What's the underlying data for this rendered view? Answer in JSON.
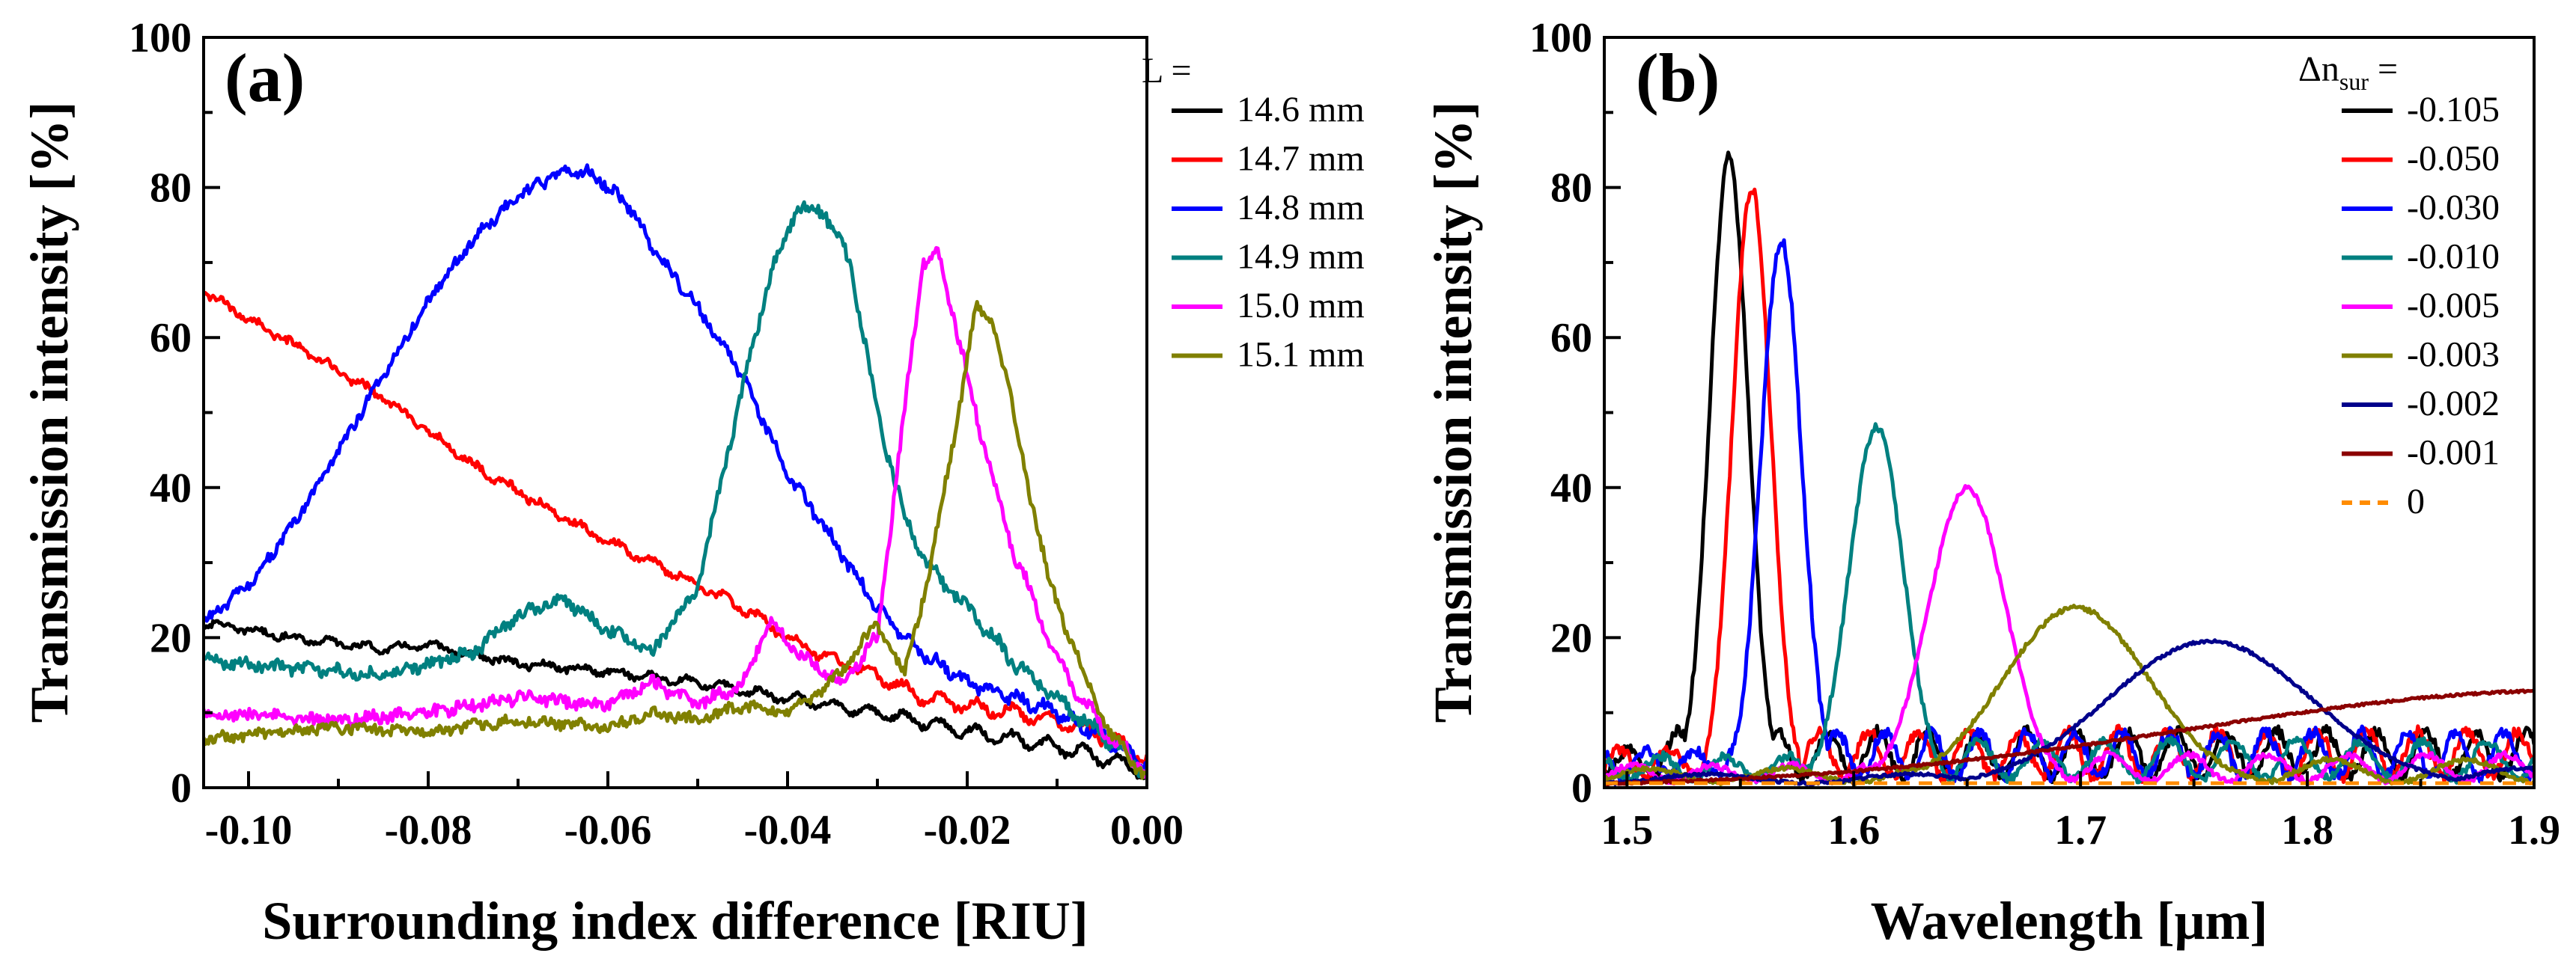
{
  "chart_data": [
    {
      "type": "line",
      "panel_label": "(a)",
      "xlabel": "Surrounding index difference [RIU]",
      "ylabel": "Transmission intensity [%]",
      "xlim": [
        -0.105,
        0.0
      ],
      "ylim": [
        0,
        100
      ],
      "x_ticks": [
        -0.1,
        -0.08,
        -0.06,
        -0.04,
        -0.02,
        0.0
      ],
      "x_tick_labels": [
        "-0.10",
        "-0.08",
        "-0.06",
        "-0.04",
        "-0.02",
        "0.00"
      ],
      "y_ticks": [
        0,
        20,
        40,
        60,
        80,
        100
      ],
      "y_tick_labels": [
        "0",
        "20",
        "40",
        "60",
        "80",
        "100"
      ],
      "legend_title": "L =",
      "legend_position": "top-right",
      "series": [
        {
          "name": "14.6 mm",
          "color": "#000000",
          "noise": 0.4,
          "ripple": 1.0,
          "ripple_period": 0.004,
          "x": [
            -0.105,
            -0.095,
            -0.085,
            -0.08,
            -0.07,
            -0.06,
            -0.05,
            -0.04,
            -0.03,
            -0.02,
            -0.01,
            -0.005,
            0.0
          ],
          "y": [
            22,
            20,
            18.5,
            19,
            16.5,
            15.5,
            14,
            12,
            10,
            7.5,
            5.5,
            4,
            2
          ]
        },
        {
          "name": "14.7 mm",
          "color": "#ff0000",
          "noise": 0.5,
          "ripple": 1.0,
          "ripple_period": 0.004,
          "x": [
            -0.105,
            -0.095,
            -0.085,
            -0.075,
            -0.065,
            -0.055,
            -0.045,
            -0.04,
            -0.035,
            -0.03,
            -0.025,
            -0.02,
            -0.01,
            -0.005,
            0.0
          ],
          "y": [
            66,
            59,
            52,
            43,
            36,
            30,
            24,
            20,
            17,
            15,
            12,
            11,
            9,
            7,
            4
          ]
        },
        {
          "name": "14.8 mm",
          "color": "#0000ff",
          "noise": 0.7,
          "ripple": 0.8,
          "ripple_period": 0.003,
          "x": [
            -0.105,
            -0.1,
            -0.095,
            -0.09,
            -0.085,
            -0.08,
            -0.075,
            -0.07,
            -0.065,
            -0.062,
            -0.058,
            -0.055,
            -0.05,
            -0.045,
            -0.04,
            -0.035,
            -0.03,
            -0.025,
            -0.02,
            -0.015,
            -0.01,
            -0.005,
            0.0
          ],
          "y": [
            22,
            27,
            35,
            45,
            55,
            65,
            73,
            79,
            82,
            82,
            78,
            72,
            64,
            55,
            42,
            33,
            24,
            18,
            14,
            12,
            10,
            7,
            3
          ]
        },
        {
          "name": "14.9 mm",
          "color": "#008080",
          "noise": 0.8,
          "ripple": 0.8,
          "ripple_period": 0.0035,
          "x": [
            -0.105,
            -0.095,
            -0.085,
            -0.075,
            -0.07,
            -0.065,
            -0.06,
            -0.055,
            -0.05,
            -0.046,
            -0.042,
            -0.039,
            -0.036,
            -0.033,
            -0.03,
            -0.027,
            -0.024,
            -0.02,
            -0.015,
            -0.01,
            -0.005,
            0.0
          ],
          "y": [
            17,
            16,
            15,
            18,
            23,
            25,
            21,
            18,
            27,
            48,
            68,
            77,
            77,
            70,
            50,
            36,
            29,
            24,
            17,
            12,
            7,
            2
          ]
        },
        {
          "name": "15.0 mm",
          "color": "#ff00ff",
          "noise": 0.8,
          "ripple": 0.7,
          "ripple_period": 0.0035,
          "x": [
            -0.105,
            -0.09,
            -0.08,
            -0.07,
            -0.06,
            -0.055,
            -0.05,
            -0.045,
            -0.042,
            -0.038,
            -0.034,
            -0.03,
            -0.027,
            -0.025,
            -0.023,
            -0.021,
            -0.018,
            -0.015,
            -0.01,
            -0.005,
            0.0
          ],
          "y": [
            10,
            9,
            10,
            12,
            11,
            14,
            11,
            14,
            22,
            17,
            14,
            20,
            50,
            70,
            71,
            60,
            45,
            32,
            17,
            8,
            2
          ]
        },
        {
          "name": "15.1 mm",
          "color": "#808000",
          "noise": 0.7,
          "ripple": 0.6,
          "ripple_period": 0.004,
          "x": [
            -0.105,
            -0.09,
            -0.08,
            -0.07,
            -0.06,
            -0.055,
            -0.05,
            -0.045,
            -0.04,
            -0.035,
            -0.03,
            -0.027,
            -0.024,
            -0.021,
            -0.019,
            -0.017,
            -0.014,
            -0.011,
            -0.007,
            -0.004,
            0.0
          ],
          "y": [
            6.5,
            8,
            7.5,
            9,
            8,
            10,
            9,
            11,
            10,
            14,
            22,
            15,
            30,
            50,
            64,
            62,
            45,
            28,
            15,
            7,
            1.5
          ]
        }
      ]
    },
    {
      "type": "line",
      "panel_label": "(b)",
      "xlabel": "Wavelength [μm]",
      "ylabel": "Transmission intensity [%]",
      "xlim": [
        1.49,
        1.9
      ],
      "ylim": [
        0,
        100
      ],
      "x_ticks": [
        1.5,
        1.6,
        1.7,
        1.8,
        1.9
      ],
      "x_tick_labels": [
        "1.5",
        "1.6",
        "1.7",
        "1.8",
        "1.9"
      ],
      "y_ticks": [
        0,
        20,
        40,
        60,
        80,
        100
      ],
      "y_tick_labels": [
        "0",
        "20",
        "40",
        "60",
        "80",
        "100"
      ],
      "legend_title_main": "Δn",
      "legend_title_sub": "sur",
      "legend_title_suffix": " =",
      "legend_position": "top-right",
      "series": [
        {
          "name": "-0.105",
          "color": "#000000",
          "peak_x": 1.545,
          "peak_y": 84,
          "width": 0.0085,
          "ripple": 6,
          "ripple_period": 0.022,
          "ripple_phase": 0.3,
          "baseline": 5,
          "noise": 0.8
        },
        {
          "name": "-0.050",
          "color": "#ff0000",
          "peak_x": 1.555,
          "peak_y": 80,
          "width": 0.0085,
          "ripple": 6,
          "ripple_period": 0.022,
          "ripple_phase": 1.4,
          "baseline": 5,
          "noise": 0.8
        },
        {
          "name": "-0.030",
          "color": "#0000ff",
          "peak_x": 1.568,
          "peak_y": 73,
          "width": 0.009,
          "ripple": 6,
          "ripple_period": 0.021,
          "ripple_phase": 2.6,
          "baseline": 5,
          "noise": 0.8
        },
        {
          "name": "-0.010",
          "color": "#008080",
          "peak_x": 1.61,
          "peak_y": 48,
          "width": 0.012,
          "ripple": 5,
          "ripple_period": 0.028,
          "ripple_phase": 0.9,
          "baseline": 4,
          "noise": 0.6
        },
        {
          "name": "-0.005",
          "color": "#ff00ff",
          "peak_x": 1.65,
          "peak_y": 40,
          "width": 0.017,
          "ripple": 3.5,
          "ripple_period": 0.035,
          "ripple_phase": 2.0,
          "baseline": 3,
          "noise": 0.4
        },
        {
          "name": "-0.003",
          "color": "#808000",
          "peak_x": 1.698,
          "peak_y": 24,
          "width": 0.032,
          "ripple": 3,
          "ripple_period": 0.06,
          "ripple_phase": 0.5,
          "baseline": 2.5,
          "noise": 0.3
        },
        {
          "name": "-0.002",
          "color": "#00008b",
          "peak_x": 1.757,
          "peak_y": 19.5,
          "width": 0.045,
          "ripple": 2,
          "ripple_period": 0.09,
          "ripple_phase": 1.2,
          "baseline": 2,
          "noise": 0.2
        },
        {
          "name": "-0.001",
          "color": "#8b0000",
          "peak_x": 1.92,
          "peak_y": 13,
          "width": 0.17,
          "ripple": 0,
          "ripple_period": 0.1,
          "ripple_phase": 0,
          "baseline": 0.5,
          "noise": 0.15
        },
        {
          "name": "0",
          "color": "#ff8c00",
          "dashed": true,
          "flat_value": 0.6,
          "noise": 0.0
        }
      ]
    }
  ]
}
